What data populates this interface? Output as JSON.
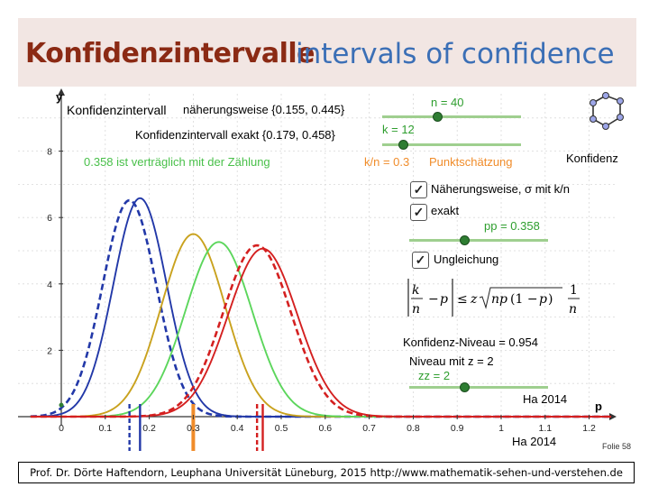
{
  "header": {
    "title_de": "Konfidenzintervalle",
    "title_en": "intervals of confidence"
  },
  "panel": {
    "approx_label": "Konfidenzintervall",
    "approx_value": "näherungsweise {0.155, 0.445}",
    "exact_value": "Konfidenzintervall exakt  {0.179, 0.458}",
    "compat_text": "0.358 ist verträglich mit der Zählung",
    "n_label": "n = 40",
    "k_label": "k = 12",
    "kn_label": "k/n = 0.3",
    "point_label": "Punktschätzung",
    "konfidenz_label": "Konfidenz",
    "cb_approx": "Näherungsweise, σ mit k/n",
    "cb_exact": "exakt",
    "pp_label": "pp = 0.358",
    "cb_ineq": "Ungleichung",
    "niveau": "Konfidenz-Niveau = 0.954",
    "niveau_z": "Niveau mit z =  2",
    "zz_label": "zz = 2",
    "ha_right": "Ha 2014",
    "ha_bottom": "Ha 2014",
    "axis_y": "y",
    "axis_x": "p"
  },
  "folie": "Folie  58",
  "footer": "Prof. Dr. Dörte Haftendorn, Leuphana Universität Lüneburg, 2015  http://www.mathematik-sehen-und-verstehen.de",
  "chart_data": {
    "type": "line",
    "x_ticks": [
      "0",
      "0.1",
      "0.2",
      "0.3",
      "0.4",
      "0.5",
      "0.6",
      "0.7",
      "0.8",
      "0.9",
      "1",
      "1.1",
      "1.2"
    ],
    "y_ticks": [
      "2",
      "4",
      "6",
      "8"
    ],
    "xlim": [
      -0.07,
      1.25
    ],
    "ylim": [
      0,
      9
    ],
    "series": [
      {
        "color": "#2238a8",
        "mu": 0.155,
        "sigma": 0.0612,
        "dashed": true
      },
      {
        "color": "#2238a8",
        "mu": 0.179,
        "sigma": 0.0606,
        "dashed": false
      },
      {
        "color": "#c9a21e",
        "mu": 0.3,
        "sigma": 0.0725,
        "dashed": false
      },
      {
        "color": "#5cd65c",
        "mu": 0.358,
        "sigma": 0.0758,
        "dashed": false
      },
      {
        "color": "#d42020",
        "mu": 0.445,
        "sigma": 0.0773,
        "dashed": true
      },
      {
        "color": "#d42020",
        "mu": 0.458,
        "sigma": 0.0788,
        "dashed": false
      }
    ],
    "markers": [
      {
        "x": 0.155,
        "color": "#2238a8",
        "dashed": true
      },
      {
        "x": 0.179,
        "color": "#2238a8",
        "dashed": false
      },
      {
        "x": 0.3,
        "color": "#f08c2a",
        "dashed": false
      },
      {
        "x": 0.445,
        "color": "#d42020",
        "dashed": true
      },
      {
        "x": 0.458,
        "color": "#d42020",
        "dashed": false
      }
    ]
  }
}
